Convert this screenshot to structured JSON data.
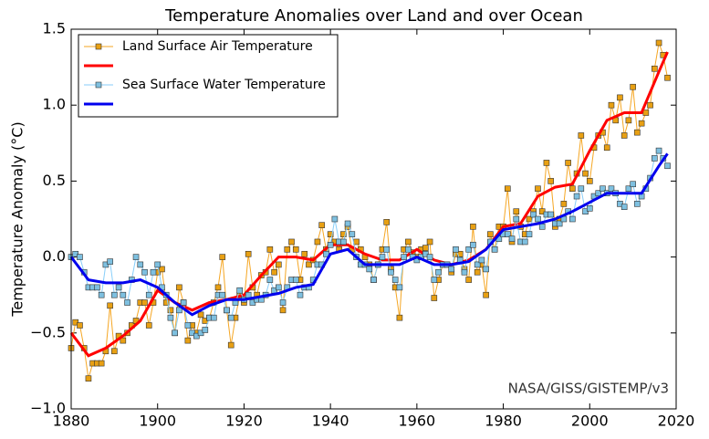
{
  "chart_data": {
    "type": "line",
    "title": "Temperature Anomalies over Land and over Ocean",
    "y_label": "Temperature Anomaly (°C)",
    "annotation": "NASA/GISS/GISTEMP/v3",
    "x": [
      1880,
      1881,
      1882,
      1883,
      1884,
      1885,
      1886,
      1887,
      1888,
      1889,
      1890,
      1891,
      1892,
      1893,
      1894,
      1895,
      1896,
      1897,
      1898,
      1899,
      1900,
      1901,
      1902,
      1903,
      1904,
      1905,
      1906,
      1907,
      1908,
      1909,
      1910,
      1911,
      1912,
      1913,
      1914,
      1915,
      1916,
      1917,
      1918,
      1919,
      1920,
      1921,
      1922,
      1923,
      1924,
      1925,
      1926,
      1927,
      1928,
      1929,
      1930,
      1931,
      1932,
      1933,
      1934,
      1935,
      1936,
      1937,
      1938,
      1939,
      1940,
      1941,
      1942,
      1943,
      1944,
      1945,
      1946,
      1947,
      1948,
      1949,
      1950,
      1951,
      1952,
      1953,
      1954,
      1955,
      1956,
      1957,
      1958,
      1959,
      1960,
      1961,
      1962,
      1963,
      1964,
      1965,
      1966,
      1967,
      1968,
      1969,
      1970,
      1971,
      1972,
      1973,
      1974,
      1975,
      1976,
      1977,
      1978,
      1979,
      1980,
      1981,
      1982,
      1983,
      1984,
      1985,
      1986,
      1987,
      1988,
      1989,
      1990,
      1991,
      1992,
      1993,
      1994,
      1995,
      1996,
      1997,
      1998,
      1999,
      2000,
      2001,
      2002,
      2003,
      2004,
      2005,
      2006,
      2007,
      2008,
      2009,
      2010,
      2011,
      2012,
      2013,
      2014,
      2015,
      2016,
      2017,
      2018
    ],
    "series": [
      {
        "name": "Land Surface Air Temperature",
        "color": "#f5a623",
        "marker": true,
        "marker_color": "#e8a013",
        "values": [
          -0.6,
          -0.43,
          -0.45,
          -0.6,
          -0.8,
          -0.7,
          -0.7,
          -0.7,
          -0.62,
          -0.32,
          -0.62,
          -0.52,
          -0.55,
          -0.5,
          -0.45,
          -0.42,
          -0.3,
          -0.3,
          -0.45,
          -0.3,
          -0.1,
          -0.08,
          -0.3,
          -0.35,
          -0.5,
          -0.2,
          -0.3,
          -0.55,
          -0.45,
          -0.5,
          -0.38,
          -0.42,
          -0.4,
          -0.3,
          -0.2,
          0.0,
          -0.35,
          -0.58,
          -0.4,
          -0.25,
          -0.3,
          0.02,
          -0.2,
          -0.25,
          -0.12,
          -0.1,
          0.05,
          -0.1,
          -0.05,
          -0.35,
          0.05,
          0.1,
          0.05,
          -0.15,
          0.02,
          -0.05,
          -0.02,
          0.1,
          0.21,
          0.05,
          0.15,
          0.1,
          0.05,
          0.15,
          0.2,
          0.05,
          0.1,
          0.05,
          0.0,
          -0.05,
          -0.15,
          -0.05,
          0.05,
          0.23,
          -0.08,
          -0.2,
          -0.4,
          0.05,
          0.1,
          0.03,
          0.0,
          0.05,
          0.06,
          0.1,
          -0.27,
          -0.15,
          -0.05,
          -0.05,
          -0.1,
          0.02,
          0.02,
          -0.08,
          -0.15,
          0.2,
          -0.1,
          -0.05,
          -0.25,
          0.15,
          0.05,
          0.2,
          0.2,
          0.45,
          0.1,
          0.3,
          0.2,
          0.15,
          0.25,
          0.3,
          0.45,
          0.3,
          0.62,
          0.5,
          0.2,
          0.25,
          0.35,
          0.62,
          0.45,
          0.55,
          0.8,
          0.55,
          0.5,
          0.72,
          0.8,
          0.82,
          0.72,
          1.0,
          0.9,
          1.05,
          0.8,
          0.9,
          1.12,
          0.82,
          0.88,
          0.95,
          1.0,
          1.24,
          1.41,
          1.33,
          1.18
        ]
      },
      {
        "color": "#ff0000",
        "width": 3,
        "x": [
          1880,
          1884,
          1888,
          1892,
          1896,
          1900,
          1904,
          1908,
          1912,
          1916,
          1920,
          1924,
          1928,
          1932,
          1936,
          1940,
          1944,
          1948,
          1952,
          1956,
          1960,
          1964,
          1968,
          1972,
          1976,
          1980,
          1984,
          1988,
          1992,
          1996,
          2000,
          2004,
          2008,
          2012,
          2016,
          2018
        ],
        "values": [
          -0.5,
          -0.65,
          -0.6,
          -0.52,
          -0.42,
          -0.22,
          -0.3,
          -0.35,
          -0.3,
          -0.28,
          -0.25,
          -0.12,
          0.0,
          0.0,
          -0.02,
          0.08,
          0.08,
          0.02,
          -0.02,
          -0.02,
          0.05,
          -0.02,
          -0.05,
          -0.02,
          0.05,
          0.2,
          0.22,
          0.4,
          0.46,
          0.48,
          0.7,
          0.9,
          0.95,
          0.95,
          1.22,
          1.35
        ]
      },
      {
        "name": "Sea Surface Water Temperature",
        "color": "#87cefa",
        "marker": true,
        "marker_color": "#7ec0e0",
        "values": [
          0.0,
          0.02,
          0.0,
          -0.1,
          -0.2,
          -0.2,
          -0.2,
          -0.25,
          -0.05,
          -0.03,
          -0.25,
          -0.2,
          -0.25,
          -0.3,
          -0.15,
          0.0,
          -0.05,
          -0.1,
          -0.25,
          -0.1,
          -0.05,
          -0.2,
          -0.25,
          -0.4,
          -0.5,
          -0.35,
          -0.3,
          -0.45,
          -0.5,
          -0.52,
          -0.5,
          -0.48,
          -0.4,
          -0.4,
          -0.25,
          -0.25,
          -0.35,
          -0.4,
          -0.3,
          -0.22,
          -0.28,
          -0.25,
          -0.3,
          -0.28,
          -0.28,
          -0.25,
          -0.15,
          -0.22,
          -0.2,
          -0.3,
          -0.2,
          -0.15,
          -0.15,
          -0.25,
          -0.2,
          -0.2,
          -0.15,
          -0.05,
          -0.05,
          0.02,
          0.08,
          0.25,
          0.1,
          0.1,
          0.22,
          0.15,
          0.0,
          -0.05,
          -0.05,
          -0.08,
          -0.15,
          -0.05,
          0.0,
          0.05,
          -0.1,
          -0.15,
          -0.2,
          0.0,
          0.05,
          0.0,
          -0.02,
          0.0,
          0.02,
          0.0,
          -0.15,
          -0.1,
          -0.05,
          -0.05,
          -0.08,
          0.05,
          -0.02,
          -0.1,
          0.05,
          0.08,
          -0.05,
          -0.02,
          -0.08,
          0.1,
          0.05,
          0.12,
          0.15,
          0.15,
          0.12,
          0.25,
          0.1,
          0.1,
          0.15,
          0.28,
          0.25,
          0.2,
          0.28,
          0.28,
          0.22,
          0.22,
          0.25,
          0.3,
          0.25,
          0.4,
          0.45,
          0.3,
          0.32,
          0.4,
          0.42,
          0.45,
          0.42,
          0.45,
          0.42,
          0.35,
          0.33,
          0.45,
          0.48,
          0.35,
          0.4,
          0.45,
          0.52,
          0.65,
          0.7,
          0.65,
          0.6
        ]
      },
      {
        "color": "#0000ee",
        "width": 3,
        "x": [
          1880,
          1884,
          1888,
          1892,
          1896,
          1900,
          1904,
          1908,
          1912,
          1916,
          1920,
          1924,
          1928,
          1932,
          1936,
          1940,
          1944,
          1948,
          1952,
          1956,
          1960,
          1964,
          1968,
          1972,
          1976,
          1980,
          1984,
          1988,
          1992,
          1996,
          2000,
          2004,
          2008,
          2012,
          2016,
          2018
        ],
        "values": [
          0.0,
          -0.15,
          -0.17,
          -0.17,
          -0.15,
          -0.2,
          -0.3,
          -0.38,
          -0.32,
          -0.28,
          -0.28,
          -0.26,
          -0.24,
          -0.2,
          -0.18,
          0.02,
          0.05,
          -0.05,
          -0.05,
          -0.05,
          0.0,
          -0.05,
          -0.05,
          -0.03,
          0.05,
          0.18,
          0.2,
          0.22,
          0.25,
          0.3,
          0.36,
          0.42,
          0.42,
          0.42,
          0.6,
          0.68
        ]
      }
    ],
    "xlim": [
      1880,
      2020
    ],
    "xticks": [
      1880,
      1900,
      1920,
      1940,
      1960,
      1980,
      2000,
      2020
    ],
    "ylim": [
      -1.0,
      1.5
    ],
    "yticks": [
      {
        "value": -1.0,
        "label": "−1.0"
      },
      {
        "value": -0.5,
        "label": "−0.5"
      },
      {
        "value": 0.0,
        "label": "0.0"
      },
      0.5,
      {
        "value": 1.0,
        "label": "1.0"
      },
      {
        "value": 1.5,
        "label": "1.5"
      }
    ],
    "legend": "upper left"
  }
}
